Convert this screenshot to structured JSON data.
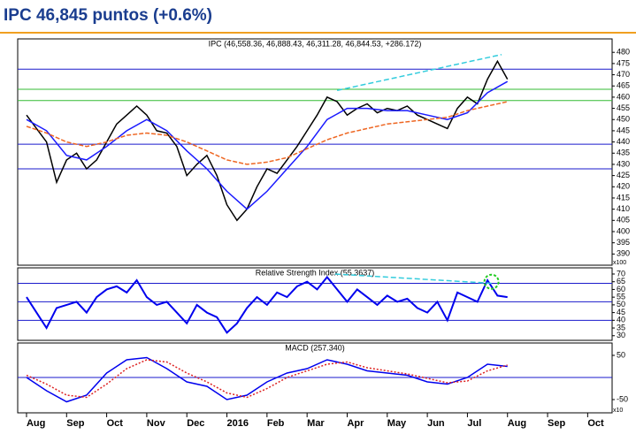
{
  "title": "IPC 46,845 puntos (+0.6%)",
  "chart_data": [
    {
      "type": "line",
      "subtitle": "IPC (46,558.36, 46,888.43, 46,311.28, 46,844.53, +286.172)",
      "xlim": [
        -0.22,
        14.61
      ],
      "ylim": [
        385,
        486
      ],
      "yticks": [
        390,
        395,
        400,
        405,
        410,
        415,
        420,
        425,
        430,
        435,
        440,
        445,
        450,
        455,
        460,
        465,
        470,
        475,
        480
      ],
      "y_scale_label": "x100",
      "hlines": [
        {
          "value": 472.5,
          "color": "#1a1acc"
        },
        {
          "value": 463.5,
          "color": "#33bb33"
        },
        {
          "value": 458.5,
          "color": "#33bb33"
        },
        {
          "value": 439,
          "color": "#1a1acc"
        },
        {
          "value": 428,
          "color": "#1a1acc"
        }
      ],
      "trendlines": [
        {
          "x": [
            7.75,
            11.85
          ],
          "y": [
            463,
            479
          ],
          "color": "#33ccdd"
        }
      ],
      "series": [
        {
          "color": "#000000",
          "x": [
            0,
            0.25,
            0.5,
            0.75,
            1,
            1.25,
            1.5,
            1.75,
            2,
            2.25,
            2.5,
            2.75,
            3,
            3.25,
            3.5,
            3.75,
            4,
            4.25,
            4.5,
            4.75,
            5,
            5.25,
            5.5,
            5.75,
            6,
            6.25,
            6.5,
            6.75,
            7,
            7.25,
            7.5,
            7.75,
            8,
            8.25,
            8.5,
            8.75,
            9,
            9.25,
            9.5,
            9.75,
            10,
            10.25,
            10.5,
            10.75,
            11,
            11.25,
            11.5,
            11.75,
            12
          ],
          "values": [
            452,
            446,
            440,
            422,
            432,
            435,
            428,
            432,
            440,
            448,
            452,
            456,
            452,
            445,
            444,
            438,
            425,
            430,
            434,
            425,
            412,
            405,
            410,
            420,
            428,
            426,
            432,
            438,
            445,
            452,
            460,
            458,
            452,
            455,
            457,
            453,
            455,
            454,
            456,
            452,
            450,
            448,
            446,
            455,
            460,
            457,
            468,
            476,
            468
          ]
        },
        {
          "color": "#1a1aff",
          "x": [
            0,
            0.5,
            1,
            1.5,
            2,
            2.5,
            3,
            3.5,
            4,
            4.5,
            5,
            5.5,
            6,
            6.5,
            7,
            7.5,
            8,
            8.5,
            9,
            9.5,
            10,
            10.5,
            11,
            11.5,
            12
          ],
          "values": [
            450,
            445,
            434,
            432,
            438,
            445,
            450,
            445,
            436,
            428,
            418,
            410,
            418,
            428,
            438,
            450,
            455,
            455,
            454,
            454,
            452,
            450,
            453,
            462,
            467
          ]
        },
        {
          "color": "#ee6622",
          "dashed": true,
          "x": [
            0,
            0.5,
            1,
            1.5,
            2,
            2.5,
            3,
            3.5,
            4,
            4.5,
            5,
            5.5,
            6,
            6.5,
            7,
            7.5,
            8,
            8.5,
            9,
            9.5,
            10,
            10.5,
            11,
            11.5,
            12
          ],
          "values": [
            447,
            444,
            440,
            438,
            440,
            443,
            444,
            443,
            440,
            436,
            432,
            430,
            431,
            433,
            437,
            441,
            444,
            446,
            448,
            449,
            450,
            451,
            454,
            456,
            458
          ]
        }
      ]
    },
    {
      "type": "line",
      "subtitle": "Relative Strength Index (55.3637)",
      "xlim": [
        -0.22,
        14.61
      ],
      "ylim": [
        27,
        74
      ],
      "yticks": [
        30,
        35,
        40,
        45,
        50,
        55,
        60,
        65,
        70
      ],
      "hlines": [
        {
          "value": 64,
          "color": "#1a1acc"
        },
        {
          "value": 52,
          "color": "#1a1acc"
        },
        {
          "value": 40,
          "color": "#1a1acc"
        }
      ],
      "trendlines": [
        {
          "x": [
            7.7,
            11.6
          ],
          "y": [
            70,
            64
          ],
          "color": "#33ccdd"
        }
      ],
      "highlight": {
        "x": 11.6,
        "y": 65,
        "color": "#22cc22"
      },
      "series": [
        {
          "color": "#0000ee",
          "x": [
            0,
            0.25,
            0.5,
            0.75,
            1,
            1.25,
            1.5,
            1.75,
            2,
            2.25,
            2.5,
            2.75,
            3,
            3.25,
            3.5,
            3.75,
            4,
            4.25,
            4.5,
            4.75,
            5,
            5.25,
            5.5,
            5.75,
            6,
            6.25,
            6.5,
            6.75,
            7,
            7.25,
            7.5,
            7.75,
            8,
            8.25,
            8.5,
            8.75,
            9,
            9.25,
            9.5,
            9.75,
            10,
            10.25,
            10.5,
            10.75,
            11,
            11.25,
            11.5,
            11.75,
            12
          ],
          "values": [
            55,
            45,
            35,
            48,
            50,
            52,
            45,
            55,
            60,
            62,
            58,
            66,
            55,
            50,
            52,
            45,
            38,
            50,
            45,
            42,
            32,
            38,
            48,
            55,
            50,
            58,
            55,
            62,
            65,
            60,
            68,
            60,
            52,
            60,
            55,
            50,
            56,
            52,
            54,
            48,
            45,
            52,
            40,
            58,
            55,
            52,
            66,
            56,
            55
          ]
        }
      ]
    },
    {
      "type": "line",
      "subtitle": "MACD (257.340)",
      "xlim": [
        -0.22,
        14.61
      ],
      "ylim": [
        -80,
        78
      ],
      "yticks": [
        50,
        -50
      ],
      "y_scale_label": "x10",
      "hlines": [
        {
          "value": 0,
          "color": "#1a1acc"
        }
      ],
      "xticks": [
        {
          "value": 0,
          "label": "Aug"
        },
        {
          "value": 1,
          "label": "Sep"
        },
        {
          "value": 2,
          "label": "Oct"
        },
        {
          "value": 3,
          "label": "Nov"
        },
        {
          "value": 4,
          "label": "Dec"
        },
        {
          "value": 5,
          "label": "2016"
        },
        {
          "value": 6,
          "label": "Feb"
        },
        {
          "value": 7,
          "label": "Mar"
        },
        {
          "value": 8,
          "label": "Apr"
        },
        {
          "value": 9,
          "label": "May"
        },
        {
          "value": 10,
          "label": "Jun"
        },
        {
          "value": 11,
          "label": "Jul"
        },
        {
          "value": 12,
          "label": "Aug"
        },
        {
          "value": 13,
          "label": "Sep"
        },
        {
          "value": 14,
          "label": "Oct"
        }
      ],
      "series": [
        {
          "color": "#0000ee",
          "x": [
            0,
            0.5,
            1,
            1.5,
            2,
            2.5,
            3,
            3.5,
            4,
            4.5,
            5,
            5.5,
            6,
            6.5,
            7,
            7.5,
            8,
            8.5,
            9,
            9.5,
            10,
            10.5,
            11,
            11.5,
            12
          ],
          "values": [
            0,
            -30,
            -55,
            -40,
            10,
            40,
            45,
            20,
            -10,
            -20,
            -50,
            -40,
            -10,
            10,
            20,
            40,
            30,
            15,
            10,
            5,
            -10,
            -15,
            0,
            30,
            25
          ]
        },
        {
          "color": "#dd2222",
          "dotted": true,
          "x": [
            0,
            0.5,
            1,
            1.5,
            2,
            2.5,
            3,
            3.5,
            4,
            4.5,
            5,
            5.5,
            6,
            6.5,
            7,
            7.5,
            8,
            8.5,
            9,
            9.5,
            10,
            10.5,
            11,
            11.5,
            12
          ],
          "values": [
            5,
            -15,
            -40,
            -45,
            -15,
            20,
            40,
            35,
            10,
            -10,
            -35,
            -45,
            -25,
            0,
            15,
            30,
            35,
            22,
            15,
            8,
            -2,
            -12,
            -8,
            15,
            28
          ]
        }
      ]
    }
  ]
}
